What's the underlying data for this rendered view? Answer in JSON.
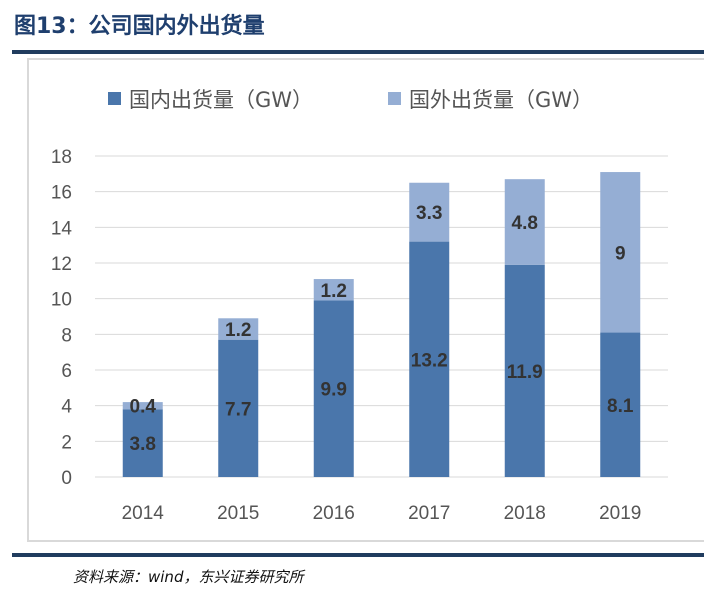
{
  "title": "图13：公司国内外出货量",
  "source": "资料来源：wind，东兴证券研究所",
  "chart_data": {
    "type": "bar",
    "stacked": true,
    "categories": [
      "2014",
      "2015",
      "2016",
      "2017",
      "2018",
      "2019"
    ],
    "series": [
      {
        "name": "国内出货量（GW）",
        "values": [
          3.8,
          7.7,
          9.9,
          13.2,
          11.9,
          8.1
        ],
        "color": "#4a76ab"
      },
      {
        "name": "国外出货量（GW）",
        "values": [
          0.4,
          1.2,
          1.2,
          3.3,
          4.8,
          9
        ],
        "color": "#95aed4"
      }
    ],
    "ylim": [
      0,
      18
    ],
    "yticks": [
      0,
      2,
      4,
      6,
      8,
      10,
      12,
      14,
      16,
      18
    ],
    "grid": true,
    "legend": "top",
    "data_labels": true
  }
}
